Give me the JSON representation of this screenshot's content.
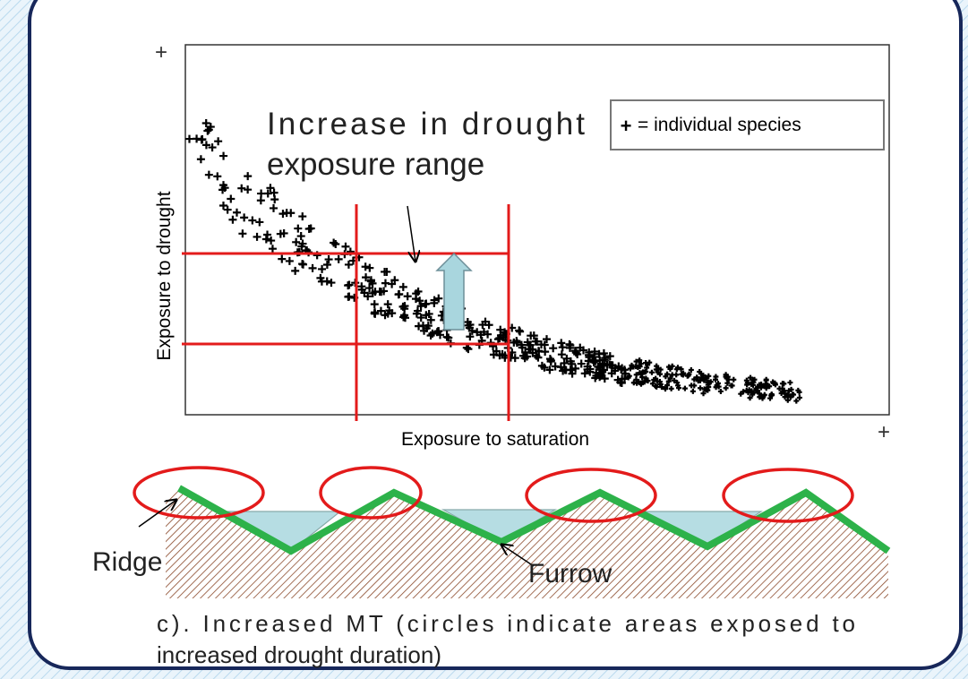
{
  "plot": {
    "top_marker": "+",
    "end_marker": "+",
    "y_axis_label": "Exposure to drought",
    "x_axis_label": "Exposure to saturation",
    "annotation": [
      "Increase in drought",
      "exposure range"
    ],
    "legend": {
      "symbol": "+",
      "label": "= individual species"
    }
  },
  "profile": {
    "ridge_label": "Ridge",
    "furrow_label": "Furrow"
  },
  "caption": [
    "c). Increased MT (circles indicate areas exposed to",
    "increased drought duration)"
  ]
}
